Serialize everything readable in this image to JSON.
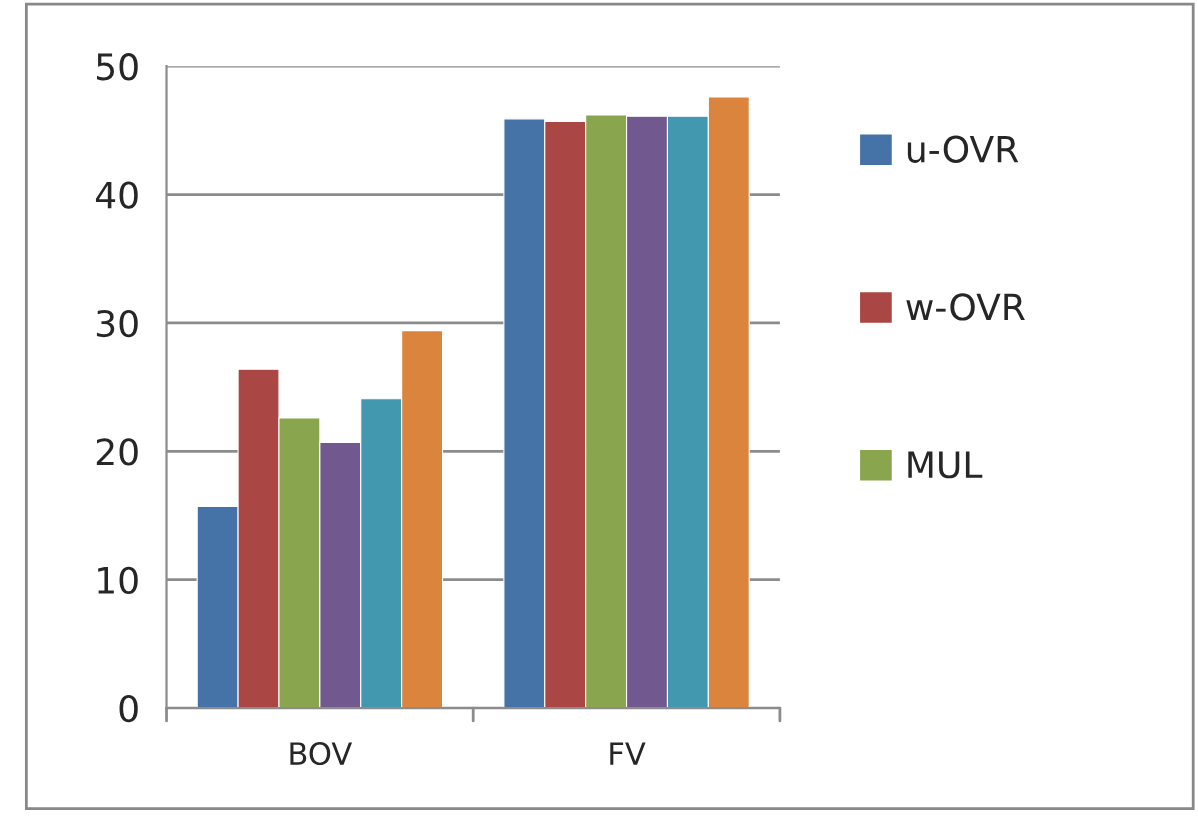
{
  "chart_data": {
    "type": "bar",
    "categories": [
      "BOV",
      "FV"
    ],
    "series": [
      {
        "name": "u-OVR",
        "color": "#4572a7",
        "values": [
          15.7,
          45.9
        ]
      },
      {
        "name": "w-OVR",
        "color": "#aa4643",
        "values": [
          26.4,
          45.7
        ]
      },
      {
        "name": "MUL",
        "color": "#89a54e",
        "values": [
          22.6,
          46.2
        ]
      },
      {
        "color": "#71588f",
        "values": [
          20.7,
          46.1
        ]
      },
      {
        "color": "#4198af",
        "values": [
          24.1,
          46.1
        ]
      },
      {
        "color": "#db843d",
        "values": [
          29.4,
          47.6
        ]
      }
    ],
    "ylim": [
      0,
      50
    ],
    "yticks": [
      0,
      10,
      20,
      30,
      40,
      50
    ],
    "grid": "y",
    "legend": "right"
  }
}
